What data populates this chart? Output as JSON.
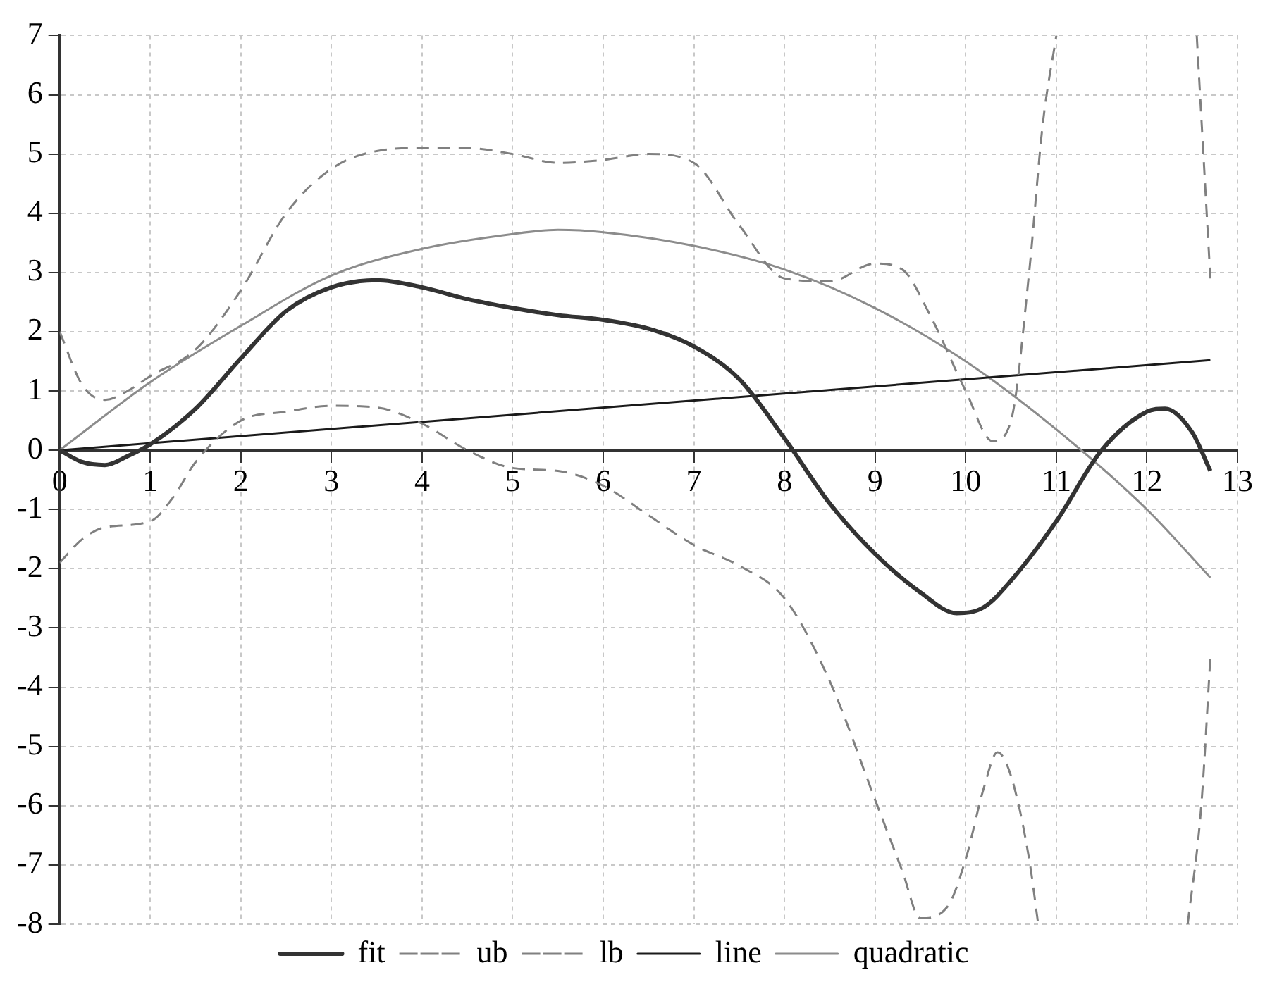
{
  "chart_data": {
    "type": "line",
    "xlim": [
      0,
      13
    ],
    "xticks": [
      0,
      1,
      2,
      3,
      4,
      5,
      6,
      7,
      8,
      9,
      10,
      11,
      12,
      13
    ],
    "ylim": [
      -8,
      7
    ],
    "yticks": [
      -8,
      -7,
      -6,
      -5,
      -4,
      -3,
      -2,
      -1,
      0,
      1,
      2,
      3,
      4,
      5,
      6,
      7
    ],
    "grid": true,
    "legend": "bottom",
    "marker": "none",
    "series": [
      {
        "name": "fit",
        "color": "#333333",
        "line_style": "solid",
        "x": [
          0,
          0.25,
          0.5,
          0.75,
          1,
          1.5,
          2,
          2.5,
          3,
          3.5,
          4,
          4.5,
          5,
          5.5,
          6,
          6.5,
          7,
          7.5,
          8,
          8.5,
          9,
          9.5,
          9.9,
          10.2,
          10.5,
          11,
          11.5,
          12,
          12.2,
          12.5,
          12.7
        ],
        "values": [
          0,
          -0.2,
          -0.25,
          -0.1,
          0.1,
          0.7,
          1.55,
          2.35,
          2.75,
          2.87,
          2.75,
          2.55,
          2.4,
          2.28,
          2.2,
          2.05,
          1.75,
          1.2,
          0.2,
          -0.9,
          -1.75,
          -2.4,
          -2.75,
          -2.65,
          -2.2,
          -1.2,
          0,
          0.65,
          0.7,
          0.3,
          -0.35
        ]
      },
      {
        "name": "ub",
        "color": "#808080",
        "line_style": "dashed",
        "x": [
          0,
          0.25,
          0.5,
          0.75,
          1,
          1.5,
          2,
          2.5,
          3,
          3.5,
          4,
          4.5,
          5,
          5.5,
          6,
          6.5,
          7,
          7.5,
          8,
          8.5,
          9,
          9.3,
          9.6,
          10,
          10.3,
          10.5,
          10.7,
          10.85,
          11,
          11.5,
          12.55,
          12.7
        ],
        "values": [
          2,
          1.1,
          0.85,
          1,
          1.25,
          1.7,
          2.7,
          4,
          4.75,
          5.05,
          5.1,
          5.1,
          5,
          4.85,
          4.9,
          5,
          4.85,
          3.8,
          2.9,
          2.85,
          3.15,
          3.05,
          2.3,
          1,
          0.15,
          0.5,
          3,
          5.5,
          7,
          null,
          7,
          2.9
        ]
      },
      {
        "name": "lb",
        "color": "#808080",
        "line_style": "dashed",
        "x": [
          0,
          0.25,
          0.5,
          1,
          1.25,
          1.5,
          2,
          2.5,
          3,
          3.5,
          4,
          4.5,
          5,
          5.5,
          6,
          6.5,
          7,
          7.5,
          8,
          8.5,
          9,
          9.3,
          9.5,
          9.8,
          10,
          10.2,
          10.35,
          10.5,
          10.7,
          10.8,
          11.5,
          12.45,
          12.6,
          12.7
        ],
        "values": [
          -1.9,
          -1.5,
          -1.3,
          -1.2,
          -0.8,
          -0.2,
          0.5,
          0.65,
          0.75,
          0.72,
          0.45,
          0,
          -0.3,
          -0.35,
          -0.6,
          -1.1,
          -1.6,
          -1.95,
          -2.5,
          -3.9,
          -5.9,
          -7.1,
          -7.9,
          -7.7,
          -6.9,
          -5.7,
          -5.1,
          -5.5,
          -6.9,
          -8,
          null,
          -8,
          -6,
          -3.5
        ]
      },
      {
        "name": "line",
        "color": "#1a1a1a",
        "line_style": "solid",
        "x": [
          0,
          12.7
        ],
        "values": [
          0,
          1.52
        ]
      },
      {
        "name": "quadratic",
        "color": "#8c8c8c",
        "line_style": "solid",
        "x": [
          0,
          1,
          2,
          3,
          4,
          5,
          5.5,
          6,
          7,
          8,
          9,
          10,
          11,
          12,
          12.7
        ],
        "values": [
          0,
          1.15,
          2.1,
          2.95,
          3.4,
          3.65,
          3.72,
          3.68,
          3.45,
          3.05,
          2.4,
          1.5,
          0.35,
          -1,
          -2.15
        ]
      }
    ]
  }
}
